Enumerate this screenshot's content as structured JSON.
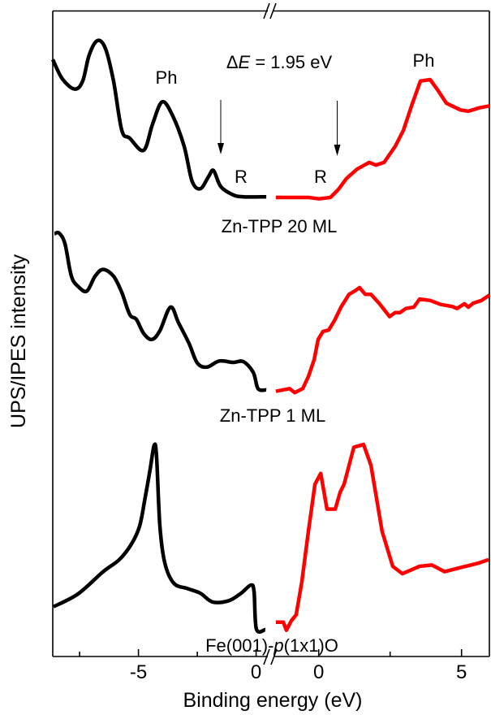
{
  "chart_data": {
    "type": "line",
    "title": "",
    "xlabel": "Binding energy (eV)",
    "ylabel": "UPS/IPES intensity",
    "broken_x_axis": true,
    "panels": [
      {
        "name": "UPS",
        "xlim": [
          -8.65,
          0.5
        ],
        "ticks_major": [
          -5,
          0
        ],
        "ticks_minor": [
          -7.5,
          -2.5
        ],
        "tick_labels": [
          "-5",
          "0"
        ]
      },
      {
        "name": "IPES",
        "xlim": [
          -1.6,
          5.97
        ],
        "ticks_major": [
          0,
          5
        ],
        "ticks_minor": [
          2.5
        ],
        "tick_labels": [
          "0",
          "5"
        ]
      }
    ],
    "ylim": [
      0,
      100
    ],
    "y_units": "arbitrary, no tick labels",
    "grid": false,
    "legend": "none",
    "colors": {
      "ups": "#000000",
      "ipes": "#ff0000"
    },
    "series": [
      {
        "panel": 0,
        "color": "#000000",
        "x": [
          -8.64,
          -8.23,
          -7.71,
          -7.37,
          -7.09,
          -6.74,
          -6.4,
          -6.06,
          -5.71,
          -5.37,
          -4.78,
          -4.4,
          -3.99,
          -3.54,
          -3.06,
          -2.72,
          -2.37,
          -2.02,
          -1.81,
          -1.5,
          -0.99,
          -0.54,
          0.43
        ],
        "y": [
          92.8,
          89.9,
          88.4,
          89.6,
          93.5,
          95.6,
          94.4,
          89.6,
          82.3,
          81.1,
          79.3,
          83.2,
          86.5,
          84.4,
          79.9,
          74.7,
          73.6,
          75.4,
          76.3,
          73.9,
          72.7,
          72.4,
          72.4
        ]
      },
      {
        "panel": 1,
        "color": "#ff0000",
        "x": [
          -1.5,
          -0.36,
          0.01,
          0.41,
          0.69,
          0.97,
          1.34,
          1.77,
          2.0,
          2.29,
          2.68,
          2.97,
          3.25,
          3.56,
          3.9,
          4.19,
          4.47,
          4.96,
          5.24,
          5.61,
          5.98
        ],
        "y": [
          72.3,
          72.3,
          72.1,
          72.3,
          73.5,
          75.1,
          76.5,
          77.5,
          77.1,
          77.5,
          79.9,
          82.3,
          85.9,
          89.6,
          89.8,
          88.1,
          86.3,
          85.3,
          85.1,
          85.6,
          85.9
        ]
      },
      {
        "panel": 0,
        "color": "#000000",
        "x": [
          -8.57,
          -8.37,
          -8.12,
          -7.85,
          -7.54,
          -7.19,
          -6.84,
          -6.5,
          -6.06,
          -5.71,
          -5.37,
          -5.09,
          -4.78,
          -4.43,
          -4.09,
          -3.64,
          -3.3,
          -2.85,
          -2.5,
          -2.09,
          -1.57,
          -0.99,
          -0.54,
          -0.12,
          0.08,
          0.43
        ],
        "y": [
          66.9,
          67.0,
          65.4,
          60.6,
          59.0,
          58.4,
          60.6,
          61.6,
          60.6,
          58.2,
          54.9,
          54.2,
          52.1,
          51.2,
          52.5,
          56.0,
          53.7,
          50.6,
          47.7,
          47.1,
          48.0,
          47.8,
          47.9,
          46.3,
          43.9,
          43.7
        ]
      },
      {
        "panel": 1,
        "color": "#ff0000",
        "x": [
          -1.5,
          -1.02,
          -0.84,
          -0.56,
          -0.36,
          -0.16,
          -0.02,
          0.15,
          0.35,
          0.55,
          0.78,
          1.06,
          1.26,
          1.43,
          1.63,
          1.83,
          2.11,
          2.48,
          2.68,
          2.85,
          3.05,
          3.33,
          3.53,
          3.7,
          3.9,
          4.27,
          4.67,
          4.84,
          5.1,
          5.24,
          5.41,
          5.7,
          5.98
        ],
        "y": [
          43.5,
          43.9,
          43.3,
          43.9,
          45.7,
          48.2,
          51.2,
          52.4,
          52.6,
          54.0,
          56.0,
          57.9,
          58.4,
          58.9,
          57.9,
          57.9,
          56.6,
          54.6,
          55.2,
          55.2,
          55.8,
          56.0,
          57.2,
          57.1,
          57.0,
          56.4,
          56.1,
          55.8,
          56.5,
          56.0,
          56.6,
          57.0,
          57.8
        ]
      },
      {
        "panel": 0,
        "color": "#000000",
        "x": [
          -8.61,
          -7.57,
          -6.5,
          -5.81,
          -5.3,
          -4.95,
          -4.71,
          -4.5,
          -4.33,
          -4.23,
          -4.09,
          -3.88,
          -3.5,
          -2.92,
          -2.37,
          -1.85,
          -1.16,
          -0.64,
          -0.23,
          -0.09,
          0.01,
          0.39
        ],
        "y": [
          11.5,
          13.4,
          16.7,
          18.5,
          20.8,
          23.5,
          27.8,
          32.0,
          35.5,
          33.8,
          23.5,
          18.0,
          15.0,
          14.2,
          13.5,
          12.2,
          12.4,
          13.5,
          14.7,
          13.8,
          8.2,
          8.1
        ]
      },
      {
        "panel": 1,
        "color": "#ff0000",
        "x": [
          -1.5,
          -1.24,
          -1.13,
          -0.96,
          -0.79,
          -0.59,
          -0.36,
          -0.13,
          0.07,
          0.29,
          0.58,
          0.75,
          0.89,
          1.23,
          1.57,
          1.83,
          2.22,
          2.59,
          2.93,
          3.53,
          3.96,
          4.41,
          4.95,
          5.61,
          5.95
        ],
        "y": [
          9.2,
          9.2,
          8.0,
          9.4,
          10.3,
          15.2,
          22.7,
          29.7,
          31.3,
          26.0,
          26.0,
          28.5,
          29.7,
          35.2,
          35.6,
          32.5,
          22.7,
          17.5,
          16.4,
          17.5,
          17.7,
          16.7,
          17.3,
          18.0,
          18.5
        ]
      }
    ],
    "annotations": {
      "ph_left": "Ph",
      "ph_right": "Ph",
      "delta_e_prefix": "Δ",
      "delta_e_symbol": "E",
      "delta_e_value": " = 1.95 eV",
      "r_left": "R",
      "r_right": "R",
      "sample_top": "Zn-TPP 20 ML",
      "sample_middle": "Zn-TPP 1 ML",
      "sample_bottom_prefix": "Fe(001)-",
      "sample_bottom_italic": "p",
      "sample_bottom_suffix": "(1x1)O"
    }
  }
}
